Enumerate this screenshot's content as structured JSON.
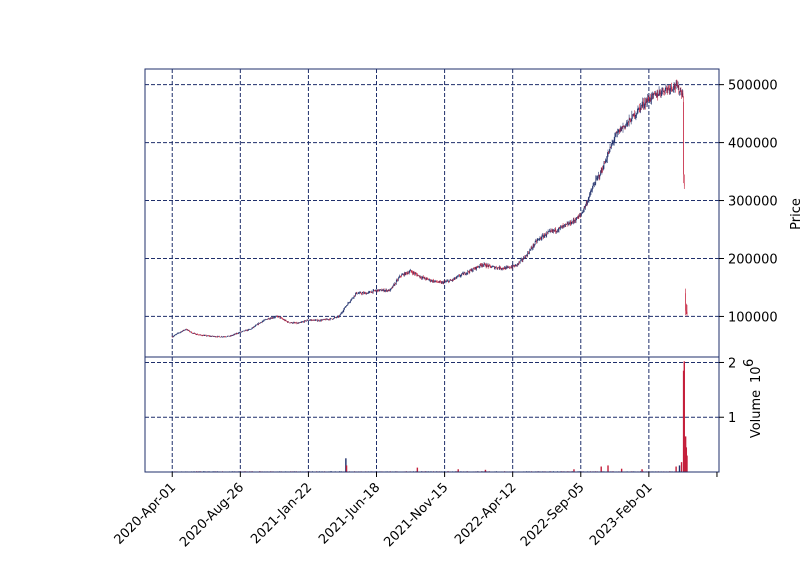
{
  "chart_data": {
    "type": "candlestick",
    "price_panel": {
      "ylabel": "Price",
      "yticks": [
        100000,
        200000,
        300000,
        400000,
        500000
      ],
      "ytick_labels": [
        "100000",
        "200000",
        "300000",
        "400000",
        "500000"
      ],
      "ylim": [
        30000,
        527000
      ],
      "grid": true
    },
    "volume_panel": {
      "ylabel": "Volume",
      "scale_label": "10",
      "scale_exponent": "6",
      "yticks": [
        1,
        2
      ],
      "ytick_labels": [
        "1",
        "2"
      ],
      "ylim": [
        0,
        2.1
      ],
      "grid": true
    },
    "x_axis": {
      "ticks": [
        "2020-Apr-01",
        "2020-Aug-26",
        "2021-Jan-22",
        "2021-Jun-18",
        "2021-Nov-15",
        "2022-Apr-12",
        "2022-Sep-05",
        "2023-Feb-01"
      ],
      "tick_indices": [
        0,
        100,
        200,
        300,
        400,
        500,
        600,
        700
      ],
      "range": [
        -40,
        803
      ]
    },
    "colors": {
      "up": "#1f2f6b",
      "down": "#c41e3a",
      "grid": "#1f2f6b",
      "frame": "#1f2f6b"
    },
    "price_anchors": [
      [
        0,
        65000
      ],
      [
        10,
        72000
      ],
      [
        20,
        78000
      ],
      [
        30,
        71000
      ],
      [
        40,
        68000
      ],
      [
        55,
        66000
      ],
      [
        70,
        65000
      ],
      [
        85,
        66000
      ],
      [
        100,
        73000
      ],
      [
        115,
        78000
      ],
      [
        130,
        90000
      ],
      [
        140,
        96000
      ],
      [
        155,
        100000
      ],
      [
        170,
        90000
      ],
      [
        185,
        88000
      ],
      [
        200,
        94000
      ],
      [
        215,
        93000
      ],
      [
        235,
        96000
      ],
      [
        245,
        100000
      ],
      [
        255,
        118000
      ],
      [
        270,
        140000
      ],
      [
        285,
        140000
      ],
      [
        300,
        145000
      ],
      [
        320,
        145000
      ],
      [
        335,
        170000
      ],
      [
        350,
        178000
      ],
      [
        365,
        168000
      ],
      [
        380,
        162000
      ],
      [
        395,
        158000
      ],
      [
        410,
        162000
      ],
      [
        425,
        172000
      ],
      [
        440,
        180000
      ],
      [
        455,
        190000
      ],
      [
        470,
        185000
      ],
      [
        490,
        183000
      ],
      [
        505,
        188000
      ],
      [
        520,
        205000
      ],
      [
        535,
        230000
      ],
      [
        550,
        243000
      ],
      [
        565,
        250000
      ],
      [
        580,
        258000
      ],
      [
        590,
        265000
      ],
      [
        600,
        275000
      ],
      [
        610,
        300000
      ],
      [
        620,
        330000
      ],
      [
        630,
        350000
      ],
      [
        640,
        380000
      ],
      [
        650,
        410000
      ],
      [
        660,
        425000
      ],
      [
        670,
        435000
      ],
      [
        680,
        450000
      ],
      [
        690,
        465000
      ],
      [
        700,
        475000
      ],
      [
        710,
        482000
      ],
      [
        720,
        490000
      ],
      [
        730,
        495000
      ],
      [
        740,
        498000
      ],
      [
        745,
        490000
      ],
      [
        750,
        485000
      ]
    ],
    "crash": [
      [
        751,
        470000,
        480000,
        330000,
        345000
      ],
      [
        752,
        330000,
        345000,
        320000,
        325000
      ],
      [
        754,
        140000,
        148000,
        102000,
        110000
      ],
      [
        755,
        110000,
        122000,
        104000,
        108000
      ],
      [
        756,
        108000,
        120000,
        100000,
        104000
      ]
    ],
    "volume_spikes": [
      [
        255,
        0.25
      ],
      [
        256,
        0.12
      ],
      [
        360,
        0.08
      ],
      [
        420,
        0.05
      ],
      [
        460,
        0.04
      ],
      [
        590,
        0.05
      ],
      [
        630,
        0.1
      ],
      [
        640,
        0.12
      ],
      [
        660,
        0.06
      ],
      [
        690,
        0.05
      ],
      [
        740,
        0.1
      ],
      [
        745,
        0.12
      ],
      [
        748,
        0.18
      ],
      [
        751,
        1.85
      ],
      [
        752,
        2.02
      ],
      [
        754,
        0.65
      ],
      [
        755,
        0.45
      ],
      [
        756,
        0.3
      ]
    ]
  }
}
